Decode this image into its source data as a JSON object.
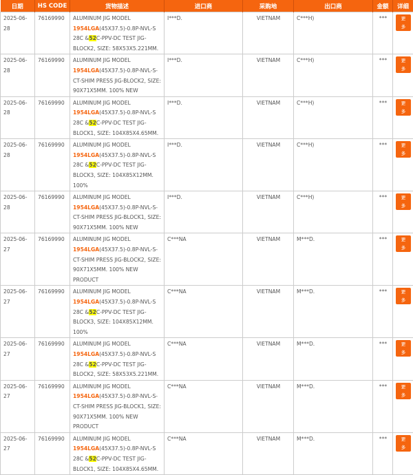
{
  "colors": {
    "accent": "#f5650f",
    "highlight": "#ffff00"
  },
  "headers": [
    "日期",
    "HS CODE",
    "货物描述",
    "进口商",
    "采购地",
    "出口商",
    "金额",
    "详细"
  ],
  "more_label": "更多",
  "rows": [
    {
      "date": "2025-06-28",
      "hs": "76169990",
      "pre": "ALUMINUM JIG MODEL ",
      "model": "1954LGA",
      "mid": "(45X37.5)-0.8P-NVL-S 28C &",
      "hl": "52",
      "post": "C-PPV-DC TEST JIG-BLOCK2, SIZE: 58X53X5.221MM.",
      "importer": "I***D.",
      "origin": "VIETNAM",
      "exporter": "C***H)",
      "amount": "***"
    },
    {
      "date": "2025-06-28",
      "hs": "76169990",
      "pre": "ALUMINUM JIG MODEL ",
      "model": "1954LGA",
      "mid": "(45X37.5)-0.8P-NVL-S-CT-SHIM PRESS JIG-BLOCK2, SIZE: 90X71X5MM. 100% NEW",
      "hl": "",
      "post": "",
      "importer": "I***D.",
      "origin": "VIETNAM",
      "exporter": "C***H)",
      "amount": "***"
    },
    {
      "date": "2025-06-28",
      "hs": "76169990",
      "pre": "ALUMINUM JIG MODEL ",
      "model": "1954LGA",
      "mid": "(45X37.5)-0.8P-NVL-S 28C &",
      "hl": "52",
      "post": "C-PPV-DC TEST JIG-BLOCK1, SIZE: 104X85X4.65MM.",
      "importer": "I***D.",
      "origin": "VIETNAM",
      "exporter": "C***H)",
      "amount": "***"
    },
    {
      "date": "2025-06-28",
      "hs": "76169990",
      "pre": "ALUMINUM JIG MODEL ",
      "model": "1954LGA",
      "mid": "(45X37.5)-0.8P-NVL-S 28C &",
      "hl": "52",
      "post": "C-PPV-DC TEST JIG-BLOCK3, SIZE: 104X85X12MM. 100%",
      "importer": "I***D.",
      "origin": "VIETNAM",
      "exporter": "C***H)",
      "amount": "***"
    },
    {
      "date": "2025-06-28",
      "hs": "76169990",
      "pre": "ALUMINUM JIG MODEL ",
      "model": "1954LGA",
      "mid": "(45X37.5)-0.8P-NVL-S-CT-SHIM PRESS JIG-BLOCK1, SIZE: 90X71X5MM. 100% NEW",
      "hl": "",
      "post": "",
      "importer": "I***D.",
      "origin": "VIETNAM",
      "exporter": "C***H)",
      "amount": "***"
    },
    {
      "date": "2025-06-27",
      "hs": "76169990",
      "pre": "ALUMINUM JIG MODEL ",
      "model": "1954LGA",
      "mid": "(45X37.5)-0.8P-NVL-S-CT-SHIM PRESS JIG-BLOCK2, SIZE: 90X71X5MM. 100% NEW PRODUCT",
      "hl": "",
      "post": "",
      "importer": "C***NA",
      "origin": "VIETNAM",
      "exporter": "M***D.",
      "amount": "***"
    },
    {
      "date": "2025-06-27",
      "hs": "76169990",
      "pre": "ALUMINUM JIG MODEL ",
      "model": "1954LGA",
      "mid": "(45X37.5)-0.8P-NVL-S 28C &",
      "hl": "52",
      "post": "C-PPV-DC TEST JIG-BLOCK3, SIZE: 104X85X12MM. 100%",
      "importer": "C***NA",
      "origin": "VIETNAM",
      "exporter": "M***D.",
      "amount": "***"
    },
    {
      "date": "2025-06-27",
      "hs": "76169990",
      "pre": "ALUMINUM JIG MODEL ",
      "model": "1954LGA",
      "mid": "(45X37.5)-0.8P-NVL-S 28C &",
      "hl": "52",
      "post": "C-PPV-DC TEST JIG-BLOCK2, SIZE: 58X53X5.221MM.",
      "importer": "C***NA",
      "origin": "VIETNAM",
      "exporter": "M***D.",
      "amount": "***"
    },
    {
      "date": "2025-06-27",
      "hs": "76169990",
      "pre": "ALUMINUM JIG MODEL ",
      "model": "1954LGA",
      "mid": "(45X37.5)-0.8P-NVL-S-CT-SHIM PRESS JIG-BLOCK1, SIZE: 90X71X5MM. 100% NEW PRODUCT",
      "hl": "",
      "post": "",
      "importer": "C***NA",
      "origin": "VIETNAM",
      "exporter": "M***D.",
      "amount": "***"
    },
    {
      "date": "2025-06-27",
      "hs": "76169990",
      "pre": "ALUMINUM JIG MODEL ",
      "model": "1954LGA",
      "mid": "(45X37.5)-0.8P-NVL-S 28C &",
      "hl": "52",
      "post": "C-PPV-DC TEST JIG-BLOCK1, SIZE: 104X85X4.65MM.",
      "importer": "C***NA",
      "origin": "VIETNAM",
      "exporter": "M***D.",
      "amount": "***"
    }
  ]
}
